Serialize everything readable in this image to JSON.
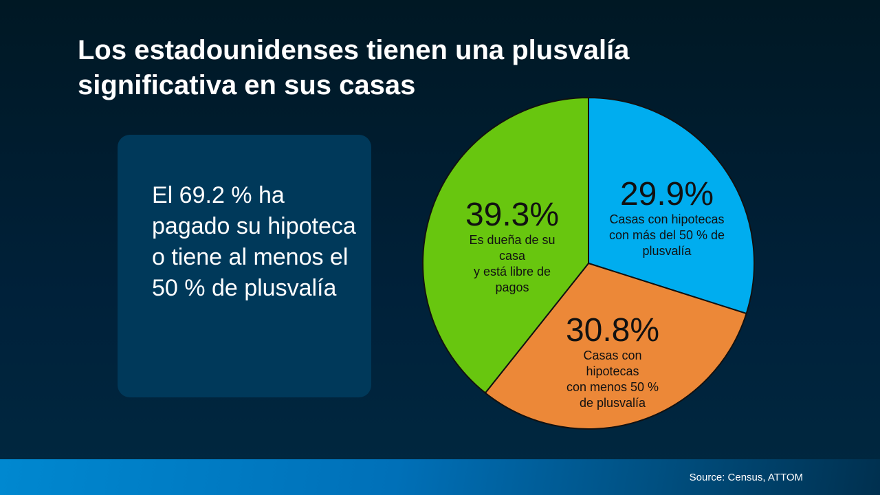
{
  "title": "Los estadounidenses tienen una plusvalía significativa en sus casas",
  "callout": "El 69.2 % ha pagado su hipoteca o tiene al menos el 50 % de plusvalía",
  "source": "Source: Census, ATTOM",
  "chart_data": {
    "type": "pie",
    "start": "top",
    "direction": "clockwise",
    "slices": [
      {
        "name": "Casas con hipotecas con más del 50 % de plusvalía",
        "value": 29.9,
        "label": "29.9%",
        "desc": [
          "Casas con hipotecas",
          "con más del 50 % de",
          "plusvalía"
        ],
        "color": "#00adef"
      },
      {
        "name": "Casas con hipotecas con menos 50 % de plusvalía",
        "value": 30.8,
        "label": "30.8%",
        "desc": [
          "Casas con",
          "hipotecas",
          "con menos 50 %",
          "de plusvalía"
        ],
        "color": "#ec8838"
      },
      {
        "name": "Es dueña de su casa y está libre de pagos",
        "value": 39.3,
        "label": "39.3%",
        "desc": [
          "Es dueña de su",
          "casa",
          "y está libre de",
          "pagos"
        ],
        "color": "#68c60f"
      }
    ]
  }
}
